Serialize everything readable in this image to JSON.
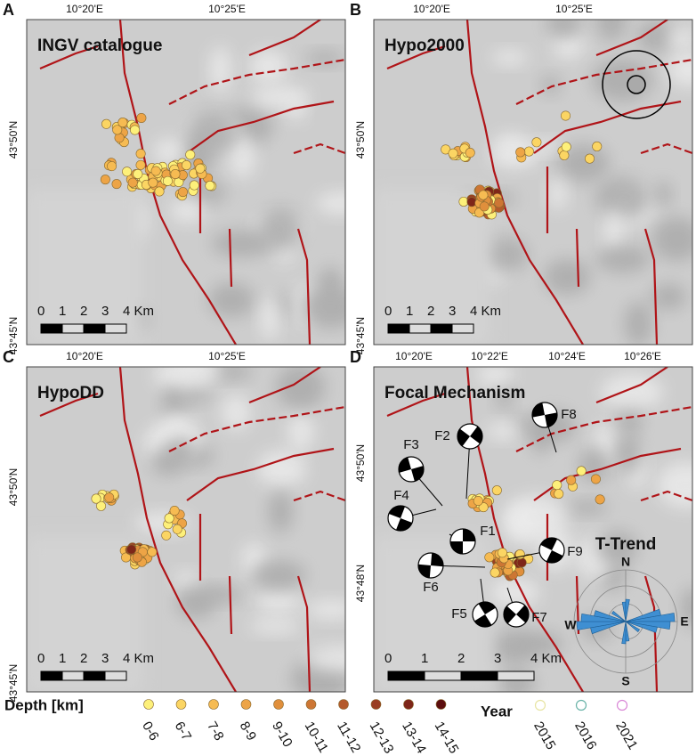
{
  "panels": [
    {
      "letter": "A",
      "title": "INGV catalogue",
      "x_labels": [
        "10°20'E",
        "10°25'E"
      ],
      "y_labels": [
        "43°50'N",
        "43°45'N"
      ],
      "scale": [
        "0",
        "1",
        "2",
        "3",
        "4 Km"
      ]
    },
    {
      "letter": "B",
      "title": "Hypo2000",
      "x_labels": [
        "10°20'E",
        "10°25'E"
      ],
      "y_labels": [
        "43°50'N",
        "43°45'N"
      ],
      "scale": [
        "0",
        "1",
        "2",
        "3",
        "4 Km"
      ]
    },
    {
      "letter": "C",
      "title": "HypoDD",
      "x_labels": [
        "10°20'E",
        "10°25'E"
      ],
      "y_labels": [
        "43°50'N",
        "43°45'N"
      ],
      "scale": [
        "0",
        "1",
        "2",
        "3",
        "4 Km"
      ]
    },
    {
      "letter": "D",
      "title": "Focal Mechanism",
      "x_labels": [
        "10°20'E",
        "10°22'E",
        "10°24'E",
        "10°26'E"
      ],
      "y_labels": [
        "43°50'N",
        "43°48'N"
      ],
      "scale": [
        "0",
        "1",
        "2",
        "3",
        "4 Km"
      ]
    }
  ],
  "focal_mechanisms": [
    "F1",
    "F2",
    "F3",
    "F4",
    "F5",
    "F6",
    "F7",
    "F8",
    "F9"
  ],
  "rose": {
    "title": "T-Trend",
    "directions": [
      "N",
      "E",
      "S",
      "W"
    ]
  },
  "legend": {
    "depth_title": "Depth [km]",
    "depth_classes": [
      "0-6",
      "6-7",
      "7-8",
      "8-9",
      "9-10",
      "10-11",
      "11-12",
      "12-13",
      "13-14",
      "14-15"
    ],
    "depth_colors": [
      "#fdf07a",
      "#fbd563",
      "#f6bb52",
      "#eda446",
      "#e08f3c",
      "#cd7634",
      "#b45a2b",
      "#9a3f22",
      "#7e2619",
      "#5c0d0e"
    ],
    "year_title": "Year",
    "years": [
      "2015",
      "2016",
      "2021"
    ],
    "year_colors": [
      "#e7e4a2",
      "#6ab3a8",
      "#d987d6"
    ]
  }
}
